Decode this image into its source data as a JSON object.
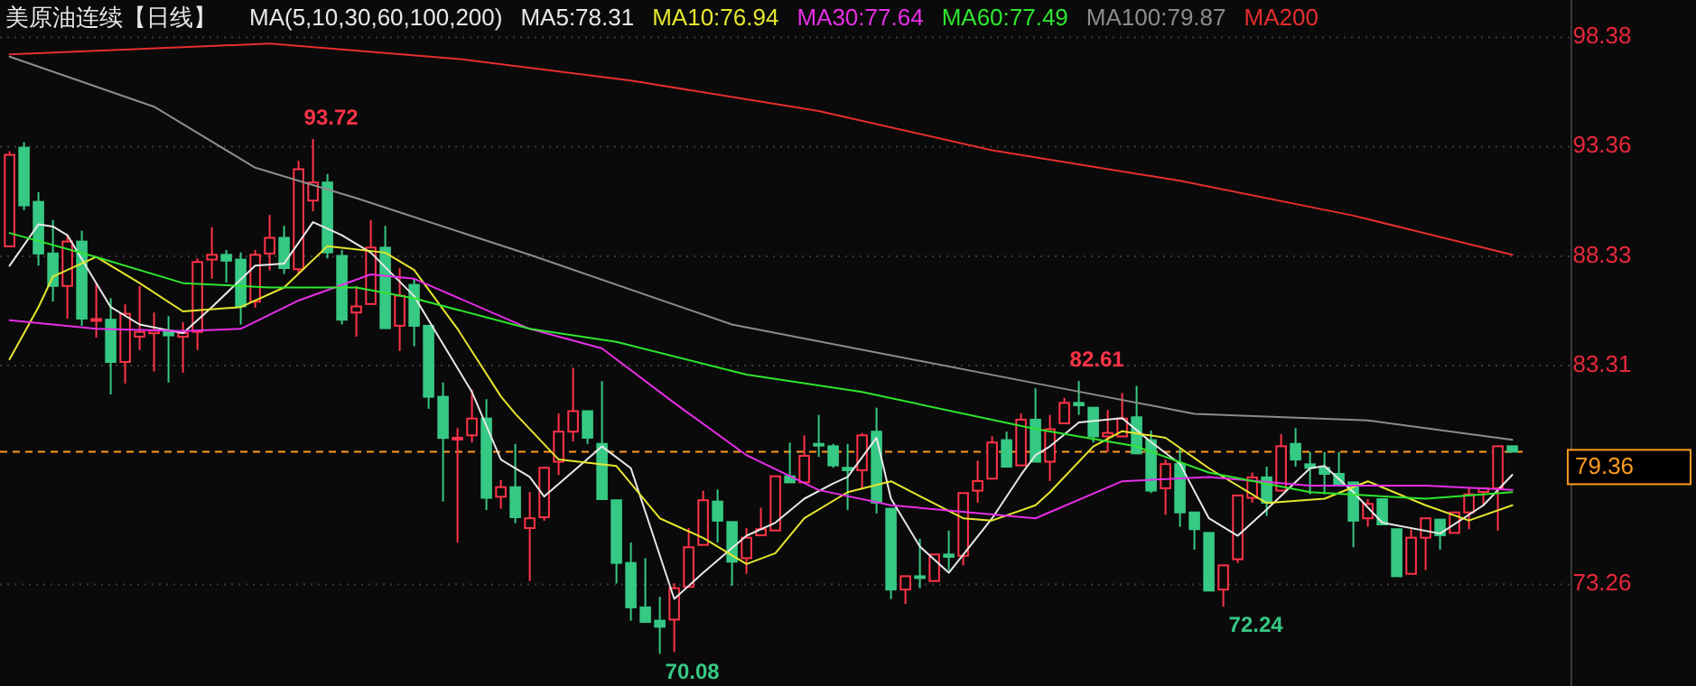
{
  "chart_data": {
    "type": "candlestick",
    "title": "美原油连续【日线】",
    "legend_title": "MA(5,10,30,60,100,200)",
    "legend": "top",
    "grid": "y",
    "tick_labels": "y",
    "categories": [
      null,
      null,
      null,
      null,
      null,
      null,
      null,
      null,
      null,
      null,
      null,
      null,
      null,
      null,
      null,
      null,
      null,
      null,
      null,
      null,
      null,
      null,
      null,
      null,
      null,
      null,
      null,
      null,
      null,
      null,
      null,
      null,
      null,
      null,
      null,
      null,
      null,
      null,
      null,
      null,
      null,
      null,
      null,
      null,
      null,
      null,
      null,
      null,
      null,
      null,
      null,
      null,
      null,
      null,
      null,
      null,
      null,
      null,
      null,
      null,
      null,
      null,
      null,
      null,
      null,
      null,
      null,
      null,
      null,
      null,
      null,
      null,
      null,
      null,
      null,
      null,
      null,
      null,
      null,
      null,
      null,
      null,
      null,
      null,
      null,
      null,
      null,
      null,
      null,
      null,
      null,
      null,
      null,
      null,
      null,
      null,
      null,
      null,
      null,
      null,
      null,
      null,
      null,
      null,
      null
    ],
    "ohlc": [
      [
        88.79,
        93.16,
        88.79,
        92.99
      ],
      [
        93.32,
        93.57,
        90.45,
        90.67
      ],
      [
        90.83,
        91.28,
        87.9,
        88.46
      ],
      [
        88.46,
        90.0,
        86.25,
        86.97
      ],
      [
        86.97,
        89.34,
        85.47,
        89.01
      ],
      [
        89.01,
        89.51,
        85.14,
        85.47
      ],
      [
        85.4,
        87.13,
        84.59,
        85.45
      ],
      [
        85.42,
        86.41,
        81.99,
        83.48
      ],
      [
        83.48,
        86.13,
        82.49,
        85.69
      ],
      [
        84.64,
        86.97,
        84.03,
        84.86
      ],
      [
        84.8,
        85.75,
        83.04,
        84.92
      ],
      [
        84.92,
        85.58,
        82.54,
        84.7
      ],
      [
        84.64,
        85.31,
        82.99,
        84.81
      ],
      [
        84.86,
        88.24,
        84.03,
        88.07
      ],
      [
        88.18,
        89.67,
        87.3,
        88.4
      ],
      [
        88.4,
        88.62,
        87.13,
        88.13
      ],
      [
        88.18,
        88.51,
        85.2,
        86.03
      ],
      [
        86.25,
        88.62,
        85.97,
        88.4
      ],
      [
        88.46,
        90.23,
        87.68,
        89.18
      ],
      [
        89.18,
        89.73,
        87.52,
        87.79
      ],
      [
        87.74,
        92.71,
        87.52,
        92.33
      ],
      [
        90.89,
        93.72,
        90.39,
        91.72
      ],
      [
        91.72,
        92.11,
        88.24,
        88.51
      ],
      [
        88.35,
        88.62,
        85.2,
        85.42
      ],
      [
        85.75,
        86.97,
        84.64,
        86.03
      ],
      [
        86.14,
        90.0,
        86.14,
        88.73
      ],
      [
        88.73,
        89.73,
        85.03,
        85.03
      ],
      [
        85.14,
        87.79,
        83.98,
        86.52
      ],
      [
        87.02,
        87.3,
        84.2,
        85.14
      ],
      [
        85.14,
        85.14,
        81.33,
        81.88
      ],
      [
        81.88,
        82.54,
        77.07,
        79.99
      ],
      [
        79.99,
        80.44,
        75.19,
        80.0
      ],
      [
        80.11,
        82.21,
        79.78,
        80.88
      ],
      [
        80.88,
        81.77,
        76.68,
        77.24
      ],
      [
        77.29,
        78.06,
        76.74,
        77.73
      ],
      [
        77.73,
        79.72,
        76.07,
        76.35
      ],
      [
        75.85,
        77.51,
        73.42,
        76.3
      ],
      [
        76.35,
        78.67,
        76.19,
        78.62
      ],
      [
        78.9,
        81.11,
        78.29,
        80.28
      ],
      [
        80.28,
        83.21,
        79.83,
        81.22
      ],
      [
        81.22,
        81.22,
        79.72,
        80.0
      ],
      [
        79.72,
        82.6,
        77.18,
        77.18
      ],
      [
        77.13,
        77.13,
        73.31,
        74.25
      ],
      [
        74.25,
        75.19,
        71.6,
        72.21
      ],
      [
        72.21,
        74.47,
        71.54,
        71.54
      ],
      [
        71.6,
        72.7,
        70.08,
        71.32
      ],
      [
        71.65,
        73.31,
        70.16,
        73.09
      ],
      [
        73.15,
        75.85,
        73.15,
        74.97
      ],
      [
        75.08,
        77.57,
        75.08,
        77.13
      ],
      [
        77.07,
        77.62,
        75.19,
        76.19
      ],
      [
        76.13,
        76.13,
        73.2,
        74.31
      ],
      [
        74.47,
        75.85,
        73.75,
        75.41
      ],
      [
        75.52,
        76.79,
        75.52,
        75.8
      ],
      [
        75.74,
        78.23,
        75.74,
        78.23
      ],
      [
        78.23,
        79.78,
        77.95,
        77.95
      ],
      [
        77.95,
        80.11,
        77.95,
        79.17
      ],
      [
        79.72,
        81.05,
        79.12,
        79.67
      ],
      [
        79.61,
        79.72,
        78.62,
        78.73
      ],
      [
        78.62,
        79.72,
        76.68,
        78.51
      ],
      [
        78.51,
        80.22,
        77.62,
        80.11
      ],
      [
        80.28,
        81.38,
        76.52,
        77.02
      ],
      [
        76.74,
        76.74,
        72.59,
        73.03
      ],
      [
        73.03,
        73.64,
        72.37,
        73.64
      ],
      [
        73.64,
        75.36,
        73.09,
        73.59
      ],
      [
        73.42,
        74.64,
        73.42,
        74.64
      ],
      [
        74.64,
        75.74,
        73.92,
        74.53
      ],
      [
        74.58,
        77.46,
        74.14,
        77.46
      ],
      [
        77.57,
        78.95,
        77.02,
        78.01
      ],
      [
        78.12,
        80.06,
        78.12,
        79.78
      ],
      [
        79.89,
        80.28,
        78.67,
        78.67
      ],
      [
        78.73,
        81.11,
        78.73,
        80.83
      ],
      [
        80.83,
        82.27,
        78.9,
        78.9
      ],
      [
        78.9,
        81.05,
        78.01,
        80.39
      ],
      [
        80.66,
        81.83,
        80.66,
        81.6
      ],
      [
        81.6,
        82.61,
        81.05,
        81.49
      ],
      [
        81.38,
        81.38,
        79.78,
        80.06
      ],
      [
        80.06,
        81.27,
        79.34,
        80.22
      ],
      [
        80.06,
        82.05,
        80.06,
        80.88
      ],
      [
        80.94,
        82.38,
        79.28,
        79.28
      ],
      [
        79.89,
        80.33,
        77.46,
        77.57
      ],
      [
        77.68,
        79.0,
        76.46,
        78.79
      ],
      [
        78.79,
        79.5,
        75.91,
        76.57
      ],
      [
        76.57,
        76.57,
        74.86,
        75.8
      ],
      [
        75.63,
        75.63,
        72.98,
        72.98
      ],
      [
        73.03,
        74.14,
        72.24,
        74.14
      ],
      [
        74.42,
        77.35,
        74.25,
        77.35
      ],
      [
        77.24,
        78.4,
        77.02,
        78.18
      ],
      [
        78.18,
        78.67,
        76.41,
        77.02
      ],
      [
        77.57,
        80.17,
        77.57,
        79.61
      ],
      [
        79.72,
        80.44,
        78.67,
        79.0
      ],
      [
        78.78,
        79.34,
        77.4,
        78.62
      ],
      [
        78.62,
        79.34,
        77.4,
        78.34
      ],
      [
        78.34,
        79.34,
        77.84,
        77.84
      ],
      [
        77.95,
        77.95,
        74.97,
        76.19
      ],
      [
        76.3,
        77.18,
        75.91,
        76.96
      ],
      [
        77.18,
        77.18,
        76.02,
        76.02
      ],
      [
        75.8,
        75.8,
        73.64,
        73.64
      ],
      [
        73.75,
        75.8,
        73.75,
        75.41
      ],
      [
        75.41,
        76.3,
        73.92,
        76.3
      ],
      [
        76.24,
        76.24,
        74.86,
        75.52
      ],
      [
        75.63,
        76.57,
        75.63,
        76.57
      ],
      [
        76.57,
        77.73,
        75.8,
        77.4
      ],
      [
        77.51,
        77.68,
        76.9,
        77.68
      ],
      [
        77.68,
        79.61,
        75.74,
        79.61
      ],
      [
        79.61,
        79.61,
        79.36,
        79.36
      ]
    ],
    "series": [
      {
        "type": "line",
        "name": "MA5:78.31",
        "color": "#e8e8e8",
        "values": [
          87.9,
          null,
          89.8,
          89.7,
          89.3,
          null,
          87.1,
          86.0,
          null,
          85.2,
          null,
          null,
          84.8,
          null,
          86.0,
          null,
          null,
          87.9,
          null,
          88.0,
          null,
          89.9,
          null,
          89.3,
          null,
          88.5,
          null,
          null,
          86.5,
          85.4,
          null,
          null,
          82.1,
          null,
          79.0,
          null,
          78.2,
          77.3,
          null,
          null,
          null,
          79.6,
          null,
          78.6,
          null,
          null,
          72.6,
          null,
          73.8,
          null,
          null,
          75.5,
          null,
          76.1,
          null,
          77.2,
          null,
          77.9,
          78.2,
          null,
          80.0,
          77.2,
          null,
          75.0,
          null,
          73.8,
          null,
          null,
          76.3,
          null,
          78.3,
          79.2,
          79.6,
          null,
          80.7,
          null,
          null,
          80.9,
          null,
          79.8,
          null,
          78.8,
          null,
          76.3,
          null,
          75.5,
          null,
          76.7,
          null,
          null,
          78.6,
          78.7,
          null,
          77.5,
          null,
          76.1,
          null,
          null,
          null,
          75.6,
          null,
          null,
          76.9,
          null,
          78.3
        ]
      },
      {
        "type": "line",
        "name": "MA10:76.94",
        "color": "#e6e62e",
        "values": [
          83.6,
          null,
          86.0,
          87.4,
          null,
          null,
          88.3,
          null,
          null,
          87.1,
          null,
          null,
          85.8,
          null,
          null,
          null,
          86.0,
          null,
          null,
          86.9,
          null,
          null,
          88.8,
          null,
          null,
          null,
          88.5,
          null,
          87.7,
          null,
          null,
          85.0,
          null,
          null,
          81.9,
          81.1,
          null,
          null,
          79.0,
          null,
          null,
          null,
          78.7,
          null,
          null,
          76.3,
          null,
          null,
          75.4,
          null,
          null,
          74.2,
          null,
          74.7,
          null,
          76.3,
          null,
          null,
          77.5,
          null,
          null,
          78.0,
          null,
          null,
          null,
          null,
          76.3,
          null,
          76.2,
          null,
          null,
          76.9,
          77.5,
          null,
          null,
          79.6,
          null,
          80.3,
          null,
          null,
          80.0,
          null,
          null,
          78.6,
          null,
          null,
          null,
          77.0,
          null,
          null,
          null,
          77.2,
          null,
          null,
          78.0,
          null,
          null,
          null,
          76.9,
          null,
          null,
          76.2,
          null,
          null,
          76.9
        ]
      },
      {
        "type": "line",
        "name": "MA30:77.64",
        "color": "#e62ee6",
        "values": [
          85.4,
          null,
          null,
          null,
          null,
          null,
          85.0,
          null,
          null,
          null,
          null,
          null,
          84.9,
          null,
          null,
          null,
          85.0,
          null,
          null,
          null,
          86.3,
          null,
          null,
          null,
          null,
          87.5,
          null,
          null,
          87.3,
          null,
          null,
          null,
          null,
          null,
          null,
          null,
          85.0,
          null,
          null,
          null,
          null,
          84.1,
          null,
          null,
          null,
          null,
          81.6,
          null,
          null,
          null,
          null,
          79.2,
          null,
          null,
          null,
          null,
          77.6,
          null,
          null,
          null,
          null,
          76.9,
          null,
          null,
          null,
          null,
          null,
          null,
          null,
          null,
          null,
          76.3,
          null,
          null,
          null,
          null,
          null,
          78.0,
          null,
          null,
          null,
          null,
          null,
          78.2,
          null,
          null,
          null,
          null,
          null,
          null,
          77.8,
          null,
          null,
          null,
          null,
          null,
          null,
          null,
          77.8,
          null,
          null,
          null,
          null,
          null,
          77.6
        ]
      },
      {
        "type": "line",
        "name": "MA60:77.49",
        "color": "#2ee62e",
        "values": [
          89.4,
          null,
          null,
          null,
          null,
          null,
          88.3,
          null,
          null,
          null,
          null,
          null,
          87.1,
          null,
          null,
          null,
          null,
          null,
          86.9,
          null,
          null,
          null,
          null,
          null,
          86.9,
          null,
          null,
          null,
          86.4,
          null,
          null,
          null,
          null,
          null,
          null,
          null,
          85.0,
          null,
          null,
          null,
          null,
          null,
          84.4,
          null,
          null,
          null,
          null,
          null,
          null,
          null,
          null,
          82.9,
          null,
          null,
          null,
          null,
          null,
          null,
          null,
          82.1,
          null,
          null,
          null,
          null,
          null,
          null,
          null,
          null,
          null,
          null,
          null,
          80.4,
          null,
          null,
          null,
          null,
          null,
          null,
          79.6,
          null,
          null,
          null,
          null,
          78.4,
          null,
          null,
          null,
          null,
          null,
          null,
          77.5,
          null,
          null,
          null,
          null,
          null,
          null,
          null,
          77.2,
          null,
          null,
          null,
          null,
          null,
          77.5
        ]
      },
      {
        "type": "line",
        "name": "MA100:79.87",
        "color": "#8c8c8c",
        "values": [
          97.5,
          null,
          null,
          null,
          null,
          null,
          null,
          null,
          null,
          null,
          95.2,
          null,
          null,
          null,
          null,
          null,
          null,
          92.4,
          null,
          null,
          null,
          null,
          null,
          null,
          91.0,
          null,
          null,
          null,
          null,
          null,
          null,
          null,
          null,
          null,
          null,
          null,
          88.4,
          null,
          null,
          null,
          null,
          null,
          null,
          null,
          null,
          null,
          null,
          null,
          null,
          null,
          85.2,
          null,
          null,
          null,
          null,
          null,
          null,
          null,
          null,
          null,
          null,
          null,
          null,
          null,
          null,
          null,
          null,
          null,
          null,
          null,
          null,
          82.5,
          null,
          null,
          null,
          null,
          null,
          null,
          null,
          null,
          null,
          null,
          81.1,
          null,
          null,
          null,
          null,
          null,
          null,
          null,
          null,
          null,
          null,
          null,
          80.8,
          null,
          null,
          null,
          null,
          null,
          null,
          null,
          null,
          null,
          79.9
        ]
      },
      {
        "type": "line",
        "name": "MA200",
        "color": "#e62e2e",
        "values": [
          97.6,
          null,
          null,
          null,
          null,
          null,
          null,
          null,
          null,
          null,
          null,
          null,
          null,
          null,
          null,
          null,
          null,
          null,
          98.1,
          null,
          null,
          null,
          null,
          null,
          null,
          null,
          null,
          null,
          null,
          null,
          null,
          97.4,
          null,
          null,
          null,
          null,
          null,
          null,
          null,
          null,
          null,
          null,
          null,
          96.4,
          null,
          null,
          null,
          null,
          null,
          null,
          null,
          null,
          null,
          null,
          null,
          null,
          95.0,
          null,
          null,
          null,
          null,
          null,
          null,
          null,
          null,
          null,
          null,
          null,
          93.2,
          null,
          null,
          null,
          null,
          null,
          null,
          null,
          null,
          null,
          null,
          null,
          null,
          91.8,
          null,
          null,
          null,
          null,
          null,
          null,
          null,
          null,
          null,
          null,
          null,
          90.2,
          null,
          null,
          null,
          null,
          null,
          null,
          null,
          null,
          null,
          null,
          88.4
        ]
      }
    ],
    "ylim": [
      68.6,
      100.1
    ],
    "yticks": [
      73.26,
      83.31,
      88.33,
      93.36,
      98.38
    ],
    "ref_lines": [
      {
        "axis": "y",
        "value": 79.36,
        "label": "79.36",
        "color": "#ff9a1f",
        "line_style": "dashed"
      }
    ],
    "annotations": [
      "93.72",
      "82.61",
      "70.08",
      "72.24"
    ]
  }
}
